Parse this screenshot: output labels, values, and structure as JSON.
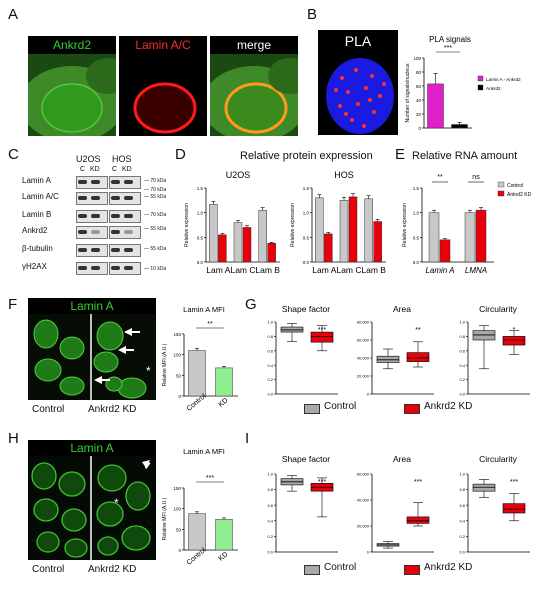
{
  "panels": {
    "A": {
      "letter": "A",
      "titles": [
        "Ankrd2",
        "Lamin A/C",
        "merge"
      ],
      "colors": [
        "#2fd12f",
        "#ff2a2a",
        "#ffffff"
      ]
    },
    "B": {
      "letter": "B",
      "image_label": "PLA",
      "chart": {
        "type": "bar",
        "title": "PLA signals",
        "ylabel": "Number of signals/nucleus",
        "ylim": [
          0,
          100
        ],
        "yticks": [
          "0",
          "20",
          "40",
          "60",
          "80",
          "100"
        ],
        "categories": [
          "Lamin A - Ankrd2",
          "Ankrd2"
        ],
        "values": [
          63,
          5
        ],
        "errors": [
          15,
          3
        ],
        "colors": [
          "#e020c8",
          "#000000"
        ],
        "significance": "***",
        "legend": [
          "Lamin A - Ankrd2",
          "Ankrd2"
        ]
      }
    },
    "C": {
      "letter": "C",
      "cells": [
        "U2OS",
        "HOS"
      ],
      "lanes": [
        "C",
        "KD"
      ],
      "bands": [
        "Lamin A",
        "Lamin A/C",
        "Lamin B",
        "Ankrd2",
        "β-tubulin",
        "γH2AX"
      ],
      "markers": [
        "70 kDa",
        "70 kDa",
        "55 kDa",
        "70 kDa",
        "55 kDa",
        "55 kDa",
        "10 kDa"
      ]
    },
    "D": {
      "letter": "D",
      "title": "Relative protein expression",
      "charts": [
        {
          "type": "bar",
          "title": "U2OS",
          "ylabel": "Relative expression",
          "ylim": [
            0,
            1.5
          ],
          "yticks": [
            "0.0",
            "0.5",
            "1.0",
            "1.5"
          ],
          "categories": [
            "Lam A",
            "Lam C",
            "Lam B"
          ],
          "series": [
            {
              "values": [
                1.17,
                0.8,
                1.05
              ],
              "color": "#c8c8c8"
            },
            {
              "values": [
                0.55,
                0.7,
                0.38
              ],
              "color": "#e8000a"
            }
          ]
        },
        {
          "type": "bar",
          "title": "HOS",
          "ylabel": "Relative expression",
          "ylim": [
            0,
            1.5
          ],
          "yticks": [
            "0.0",
            "0.5",
            "1.0",
            "1.5"
          ],
          "categories": [
            "Lam A",
            "Lam C",
            "Lam B"
          ],
          "series": [
            {
              "values": [
                1.3,
                1.25,
                1.28
              ],
              "color": "#c8c8c8"
            },
            {
              "values": [
                0.57,
                1.32,
                0.82
              ],
              "color": "#e8000a"
            }
          ]
        }
      ]
    },
    "E": {
      "letter": "E",
      "title": "Relative RNA amount",
      "chart": {
        "type": "bar",
        "ylabel": "Relative expression",
        "ylim": [
          0,
          1.5
        ],
        "yticks": [
          "0.0",
          "0.5",
          "1.0",
          "1.5"
        ],
        "categories": [
          "Lamin A",
          "LMNA"
        ],
        "series": [
          {
            "name": "Control",
            "values": [
              1.0,
              1.0
            ],
            "color": "#c8c8c8"
          },
          {
            "name": "Ankrd2 KD",
            "values": [
              0.45,
              1.05
            ],
            "color": "#e8000a"
          }
        ],
        "significance": [
          "**",
          "ns"
        ]
      }
    },
    "F": {
      "letter": "F",
      "image_title": "Lamin A",
      "captions": [
        "Control",
        "Ankrd2 KD"
      ],
      "asterisk": "*",
      "chart": {
        "type": "bar",
        "title": "Lamin A MFI",
        "ylabel": "Relative MFI (A.U.)",
        "ylim": [
          0,
          150
        ],
        "yticks": [
          "0",
          "50",
          "100",
          "150"
        ],
        "categories": [
          "Control",
          "KD"
        ],
        "values": [
          110,
          68
        ],
        "colors": [
          "#c8c8c8",
          "#90ee90"
        ],
        "significance": "**"
      }
    },
    "G": {
      "letter": "G",
      "charts": [
        {
          "type": "box",
          "title": "Shape factor",
          "ylim": [
            0,
            1.0
          ],
          "yticks": [
            "0.0",
            "0.2",
            "0.4",
            "0.6",
            "0.8",
            "1.0"
          ],
          "significance": "***",
          "boxes": [
            {
              "min": 0.73,
              "q1": 0.86,
              "median": 0.89,
              "q3": 0.93,
              "max": 0.98,
              "color": "#a8a8a8"
            },
            {
              "min": 0.6,
              "q1": 0.72,
              "median": 0.8,
              "q3": 0.86,
              "max": 0.95,
              "color": "#e8000a"
            }
          ]
        },
        {
          "type": "box",
          "title": "Area",
          "ylim": [
            0,
            80000
          ],
          "yticks": [
            "0",
            "20,000",
            "40,000",
            "60,000",
            "80,000"
          ],
          "significance": "**",
          "boxes": [
            {
              "min": 28000,
              "q1": 35000,
              "median": 38000,
              "q3": 42000,
              "max": 50000,
              "color": "#a8a8a8"
            },
            {
              "min": 30000,
              "q1": 36000,
              "median": 40000,
              "q3": 46000,
              "max": 58000,
              "color": "#e8000a"
            }
          ]
        },
        {
          "type": "box",
          "title": "Circularity",
          "ylim": [
            0,
            1.0
          ],
          "yticks": [
            "0.0",
            "0.2",
            "0.4",
            "0.6",
            "0.8",
            "1.0"
          ],
          "significance": "*",
          "boxes": [
            {
              "min": 0.35,
              "q1": 0.75,
              "median": 0.82,
              "q3": 0.88,
              "max": 0.95,
              "color": "#a8a8a8"
            },
            {
              "min": 0.55,
              "q1": 0.68,
              "median": 0.75,
              "q3": 0.8,
              "max": 0.88,
              "color": "#e8000a"
            }
          ]
        }
      ],
      "legend": [
        "Control",
        "Ankrd2 KD"
      ]
    },
    "H": {
      "letter": "H",
      "image_title": "Lamin A",
      "captions": [
        "Control",
        "Ankrd2 KD"
      ],
      "asterisk": "*",
      "chart": {
        "type": "bar",
        "title": "Lamin A  MFI",
        "ylabel": "Relative MFI (A.U.)",
        "ylim": [
          0,
          150
        ],
        "yticks": [
          "0",
          "50",
          "100",
          "150"
        ],
        "categories": [
          "Control",
          "KD"
        ],
        "values": [
          88,
          74
        ],
        "colors": [
          "#c8c8c8",
          "#90ee90"
        ],
        "significance": "***"
      }
    },
    "I": {
      "letter": "I",
      "charts": [
        {
          "type": "box",
          "title": "Shape factor",
          "ylim": [
            0,
            1.0
          ],
          "yticks": [
            "0.0",
            "0.2",
            "0.4",
            "0.6",
            "0.8",
            "1.0"
          ],
          "significance": "***",
          "boxes": [
            {
              "min": 0.78,
              "q1": 0.86,
              "median": 0.9,
              "q3": 0.94,
              "max": 0.98,
              "color": "#a8a8a8"
            },
            {
              "min": 0.45,
              "q1": 0.78,
              "median": 0.83,
              "q3": 0.88,
              "max": 0.95,
              "color": "#e8000a"
            }
          ]
        },
        {
          "type": "box",
          "title": "Area",
          "ylim": [
            0,
            60000
          ],
          "yticks": [
            "0",
            "20,000",
            "40,000",
            "60,000"
          ],
          "significance": "***",
          "boxes": [
            {
              "min": 3000,
              "q1": 4500,
              "median": 5500,
              "q3": 6500,
              "max": 8000,
              "color": "#a8a8a8"
            },
            {
              "min": 20000,
              "q1": 22000,
              "median": 24000,
              "q3": 27000,
              "max": 38000,
              "color": "#e8000a"
            }
          ]
        },
        {
          "type": "box",
          "title": "Circularity",
          "ylim": [
            0,
            1.0
          ],
          "yticks": [
            "0.0",
            "0.2",
            "0.4",
            "0.6",
            "0.8",
            "1.0"
          ],
          "significance": "***",
          "boxes": [
            {
              "min": 0.7,
              "q1": 0.78,
              "median": 0.83,
              "q3": 0.87,
              "max": 0.93,
              "color": "#a8a8a8"
            },
            {
              "min": 0.4,
              "q1": 0.5,
              "median": 0.55,
              "q3": 0.62,
              "max": 0.75,
              "color": "#e8000a"
            }
          ]
        }
      ],
      "legend": [
        "Control",
        "Ankrd2 KD"
      ]
    }
  }
}
